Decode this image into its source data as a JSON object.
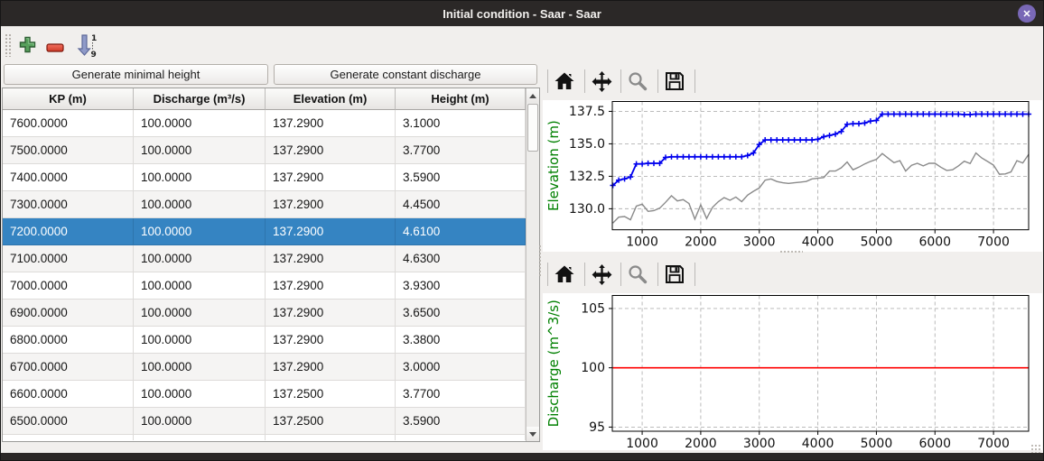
{
  "window": {
    "title": "Initial condition - Saar - Saar",
    "close_glyph": "✕"
  },
  "toolbar": {
    "add_icon": "add-row",
    "remove_icon": "remove-row",
    "sort_icon": "sort-rows",
    "sort_top_digit": "1",
    "sort_bottom_digit": "9"
  },
  "buttons": {
    "generate_minimal_height": "Generate minimal height",
    "generate_constant_discharge": "Generate constant discharge"
  },
  "table": {
    "columns": [
      "KP (m)",
      "Discharge (m³/s)",
      "Elevation (m)",
      "Height (m)"
    ],
    "selected_row_index": 4,
    "rows": [
      [
        "7600.0000",
        "100.0000",
        "137.2900",
        "3.1000"
      ],
      [
        "7500.0000",
        "100.0000",
        "137.2900",
        "3.7700"
      ],
      [
        "7400.0000",
        "100.0000",
        "137.2900",
        "3.5900"
      ],
      [
        "7300.0000",
        "100.0000",
        "137.2900",
        "4.4500"
      ],
      [
        "7200.0000",
        "100.0000",
        "137.2900",
        "4.6100"
      ],
      [
        "7100.0000",
        "100.0000",
        "137.2900",
        "4.6300"
      ],
      [
        "7000.0000",
        "100.0000",
        "137.2900",
        "3.9300"
      ],
      [
        "6900.0000",
        "100.0000",
        "137.2900",
        "3.6500"
      ],
      [
        "6800.0000",
        "100.0000",
        "137.2900",
        "3.3800"
      ],
      [
        "6700.0000",
        "100.0000",
        "137.2900",
        "3.0000"
      ],
      [
        "6600.0000",
        "100.0000",
        "137.2500",
        "3.7700"
      ],
      [
        "6500.0000",
        "100.0000",
        "137.2500",
        "3.5900"
      ]
    ]
  },
  "plot_toolbar": {
    "buttons": [
      "home",
      "pan",
      "zoom",
      "save"
    ]
  },
  "colors": {
    "titlebar": "#2b2827",
    "close_button": "#7968b6",
    "selection": "#3584c2",
    "elevation_line": "#0000ee",
    "bed_line": "#8a8a8a",
    "discharge_line": "#ff0000",
    "axis_label_green": "#008000"
  },
  "chart_data": [
    {
      "type": "line",
      "title": "",
      "xlabel": "",
      "ylabel": "Elevation (m)",
      "xlim": [
        490,
        7600
      ],
      "ylim": [
        128.38,
        138.26
      ],
      "x_ticks": [
        1000,
        2000,
        3000,
        4000,
        5000,
        6000,
        7000
      ],
      "x_tick_labels": [
        "1000",
        "2000",
        "3000",
        "4000",
        "5000",
        "6000",
        "7000"
      ],
      "y_ticks": [
        130.0,
        132.5,
        135.0,
        137.5
      ],
      "y_tick_labels": [
        "130.0",
        "132.5",
        "135.0",
        "137.5"
      ],
      "grid": true,
      "legend": "none",
      "series": [
        {
          "name": "bed-elevation",
          "color": "#8a8a8a",
          "marker": null,
          "line_width": 1.4,
          "x": {
            "start": 500,
            "step": 100
          },
          "values": [
            128.9,
            129.35,
            129.4,
            129.15,
            130.2,
            130.35,
            129.8,
            129.85,
            130.05,
            130.5,
            131,
            130.6,
            130.7,
            130.4,
            129.2,
            130.3,
            129.25,
            130.1,
            130.55,
            130.85,
            130.65,
            130.9,
            130.55,
            131.05,
            131.35,
            131.6,
            132.2,
            132.3,
            132.1,
            132,
            131.95,
            132,
            132.05,
            132.1,
            132.3,
            132.35,
            132.4,
            132.9,
            132.9,
            133.15,
            133.6,
            133,
            133.2,
            133.45,
            133.65,
            133.8,
            134.25,
            133.9,
            133.55,
            133.7,
            132.9,
            133.35,
            133.5,
            133.3,
            133.5,
            133.5,
            133.2,
            132.95,
            133,
            133.3,
            133.66,
            133.48,
            134.29,
            133.91,
            133.64,
            133.36,
            132.66,
            132.68,
            132.84,
            133.7,
            133.52,
            134.19
          ]
        },
        {
          "name": "water-elevation",
          "color": "#0000ee",
          "marker": "+",
          "line_width": 1.8,
          "x": {
            "start": 500,
            "step": 100
          },
          "values": [
            131.8,
            132.2,
            132.3,
            132.45,
            133.45,
            133.45,
            133.5,
            133.5,
            133.5,
            133.95,
            134,
            134,
            134,
            134,
            134,
            134,
            134,
            134,
            134,
            134,
            134,
            134,
            134,
            134.1,
            134.3,
            134.95,
            135.3,
            135.3,
            135.3,
            135.3,
            135.3,
            135.3,
            135.3,
            135.3,
            135.3,
            135.35,
            135.55,
            135.65,
            135.75,
            135.95,
            136.5,
            136.55,
            136.55,
            136.6,
            136.75,
            136.8,
            137.29,
            137.29,
            137.29,
            137.29,
            137.29,
            137.29,
            137.29,
            137.29,
            137.29,
            137.29,
            137.29,
            137.29,
            137.29,
            137.29,
            137.25,
            137.25,
            137.29,
            137.29,
            137.29,
            137.29,
            137.29,
            137.29,
            137.29,
            137.29,
            137.29,
            137.29
          ]
        }
      ]
    },
    {
      "type": "line",
      "title": "",
      "xlabel": "",
      "ylabel": "Discharge (m^3/s)",
      "xlim": [
        490,
        7600
      ],
      "ylim": [
        94.65,
        106.1
      ],
      "x_ticks": [
        1000,
        2000,
        3000,
        4000,
        5000,
        6000,
        7000
      ],
      "x_tick_labels": [
        "1000",
        "2000",
        "3000",
        "4000",
        "5000",
        "6000",
        "7000"
      ],
      "y_ticks": [
        95,
        100,
        105
      ],
      "y_tick_labels": [
        "95",
        "100",
        "105"
      ],
      "grid": true,
      "legend": "none",
      "series": [
        {
          "name": "constant-discharge",
          "color": "#ff0000",
          "marker": null,
          "line_width": 1.6,
          "x": [
            500,
            7600
          ],
          "values": [
            100,
            100
          ]
        }
      ]
    }
  ]
}
